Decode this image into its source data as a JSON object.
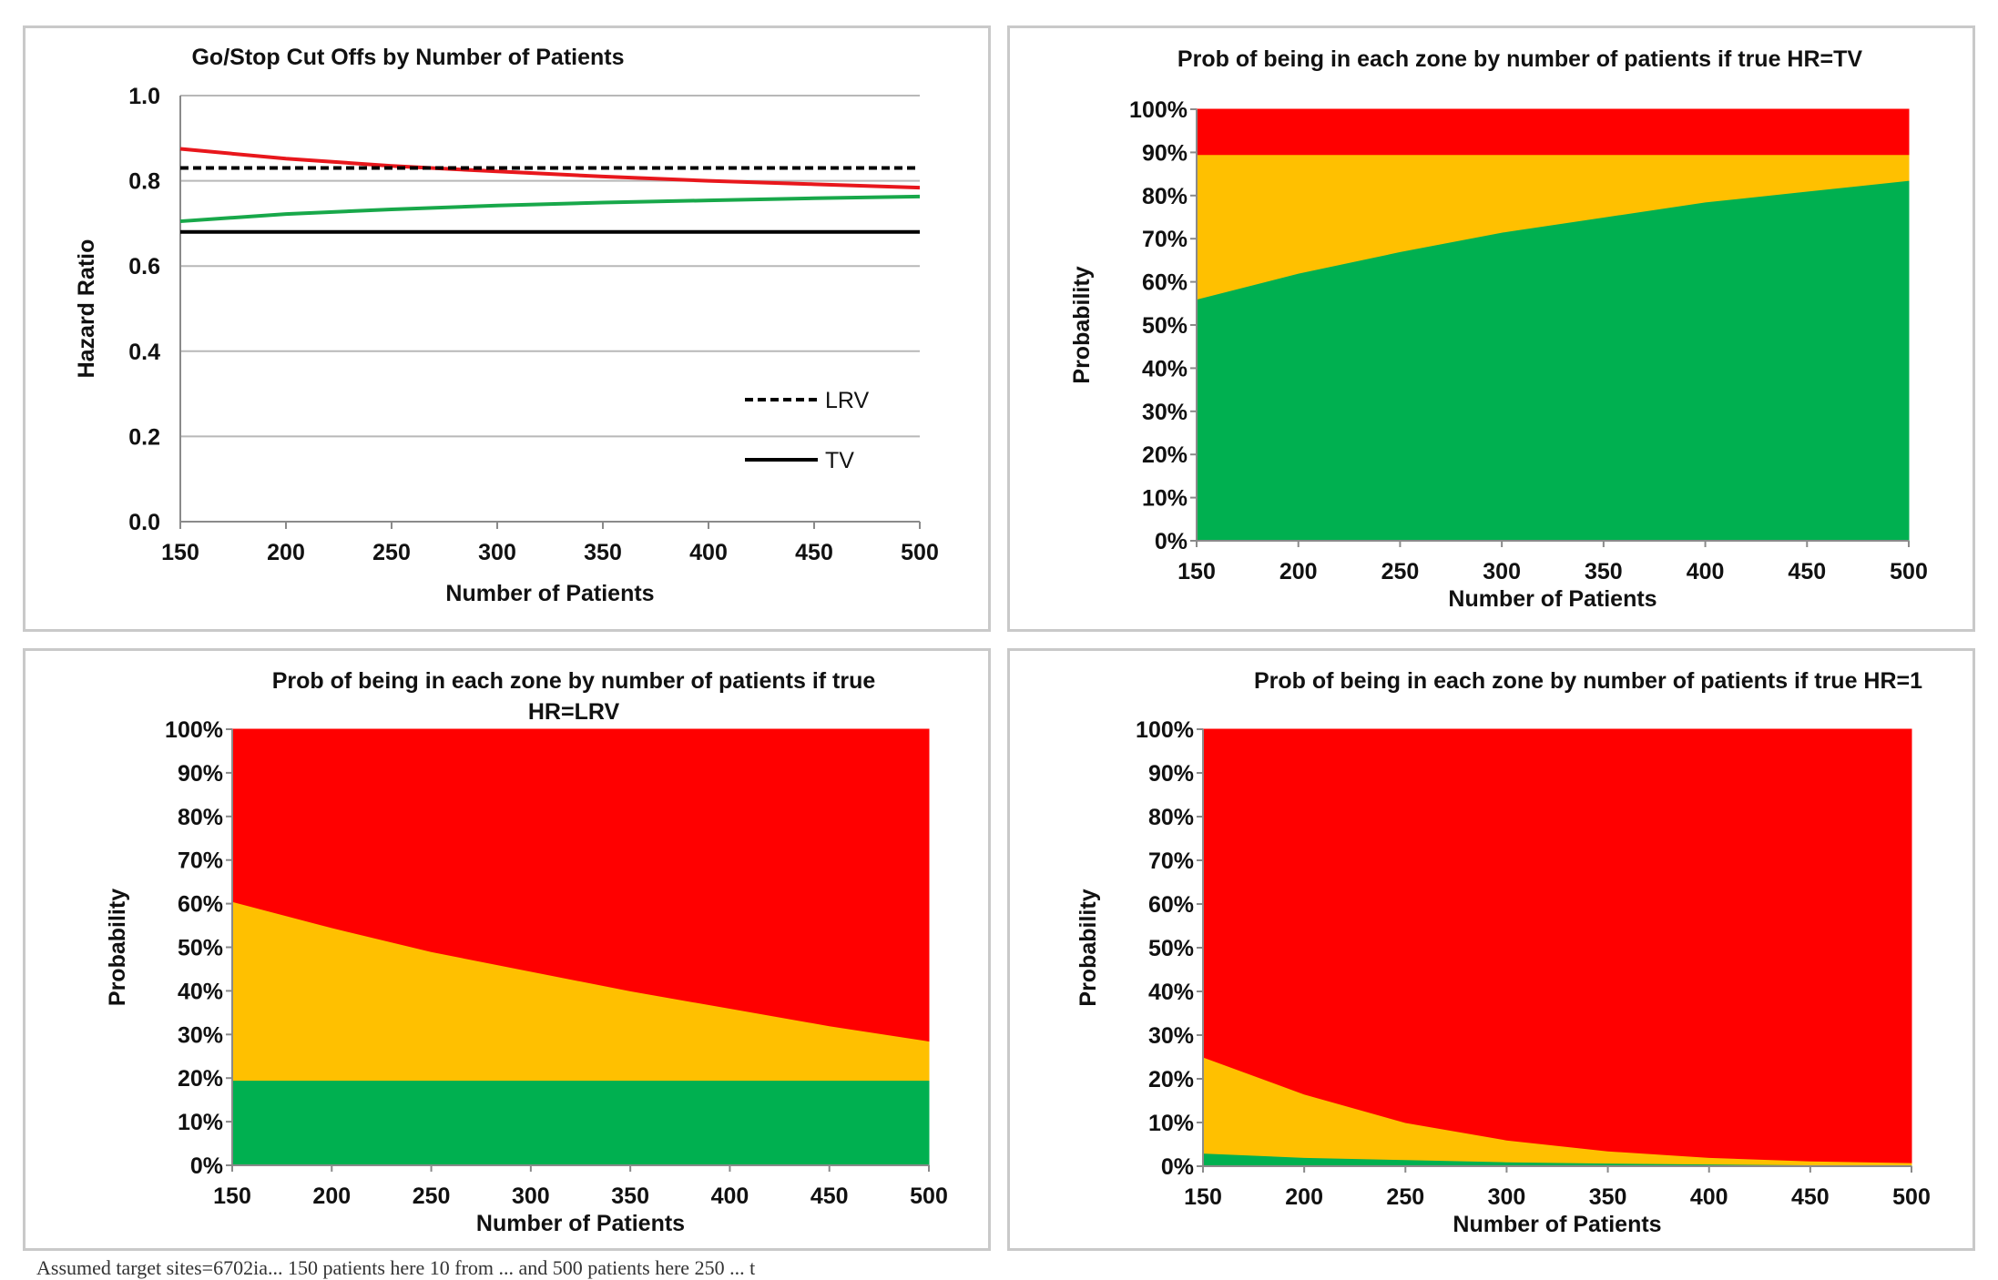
{
  "chart_data": [
    {
      "type": "line",
      "title": "Go/Stop Cut Offs by Number of Patients",
      "xlabel": "Number of Patients",
      "ylabel": "Hazard Ratio",
      "x": [
        150,
        200,
        250,
        300,
        350,
        400,
        450,
        500
      ],
      "xlim": [
        150,
        500
      ],
      "ylim": [
        0,
        1
      ],
      "yticks": [
        "0.0",
        "0.2",
        "0.4",
        "0.6",
        "0.8",
        "1.0"
      ],
      "grid": true,
      "legend_position": "bottom-right",
      "series": [
        {
          "name": "",
          "color": "#e8171c",
          "style": "solid",
          "values": [
            0.875,
            0.852,
            0.835,
            0.822,
            0.81,
            0.8,
            0.792,
            0.784
          ]
        },
        {
          "name": "",
          "color": "#18a84a",
          "style": "solid",
          "values": [
            0.705,
            0.722,
            0.733,
            0.742,
            0.749,
            0.754,
            0.759,
            0.763
          ]
        },
        {
          "name": "LRV",
          "color": "#000000",
          "style": "dashed",
          "values": [
            0.83,
            0.83,
            0.83,
            0.83,
            0.83,
            0.83,
            0.83,
            0.83
          ]
        },
        {
          "name": "TV",
          "color": "#000000",
          "style": "solid",
          "values": [
            0.68,
            0.68,
            0.68,
            0.68,
            0.68,
            0.68,
            0.68,
            0.68
          ]
        }
      ]
    },
    {
      "type": "area",
      "title": "Prob of being in each zone by number of patients if true HR=TV",
      "title_lines": [
        "Prob of being in each zone by number of patients if true HR=TV"
      ],
      "xlabel": "Number of Patients",
      "ylabel": "Probability",
      "x": [
        150,
        200,
        250,
        300,
        350,
        400,
        450,
        500
      ],
      "xlim": [
        150,
        500
      ],
      "ylim": [
        0,
        100
      ],
      "yticks": [
        "0%",
        "10%",
        "20%",
        "30%",
        "40%",
        "50%",
        "60%",
        "70%",
        "80%",
        "90%",
        "100%"
      ],
      "series": [
        {
          "name": "",
          "color": "#00b050",
          "values": [
            56,
            62,
            67,
            71.5,
            75,
            78.5,
            81,
            83.5
          ]
        },
        {
          "name": "",
          "color": "#ffc000",
          "values": [
            33.5,
            27.5,
            22.5,
            18,
            14.5,
            11,
            8.5,
            6
          ]
        },
        {
          "name": "",
          "color": "#ff0000",
          "values": [
            10.5,
            10.5,
            10.5,
            10.5,
            10.5,
            10.5,
            10.5,
            10.5
          ]
        }
      ]
    },
    {
      "type": "area",
      "title": "Prob of being in each zone by number of patients if true HR=LRV",
      "title_lines": [
        "Prob of being in each zone by number of patients if true",
        "HR=LRV"
      ],
      "xlabel": "Number of Patients",
      "ylabel": "Probability",
      "x": [
        150,
        200,
        250,
        300,
        350,
        400,
        450,
        500
      ],
      "xlim": [
        150,
        500
      ],
      "ylim": [
        0,
        100
      ],
      "yticks": [
        "0%",
        "10%",
        "20%",
        "30%",
        "40%",
        "50%",
        "60%",
        "70%",
        "80%",
        "90%",
        "100%"
      ],
      "series": [
        {
          "name": "",
          "color": "#00b050",
          "values": [
            19.5,
            19.5,
            19.5,
            19.5,
            19.5,
            19.5,
            19.5,
            19.5
          ]
        },
        {
          "name": "",
          "color": "#ffc000",
          "values": [
            41,
            35,
            29.5,
            25,
            20.5,
            16.5,
            12.5,
            9
          ]
        },
        {
          "name": "",
          "color": "#ff0000",
          "values": [
            39.5,
            45.5,
            51,
            55.5,
            60,
            64,
            68,
            71.5
          ]
        }
      ]
    },
    {
      "type": "area",
      "title": "Prob of being in each zone by number of patients if true HR=1",
      "title_lines": [
        "Prob of being in each zone by number of patients if true HR=1"
      ],
      "xlabel": "Number of Patients",
      "ylabel": "Probability",
      "x": [
        150,
        200,
        250,
        300,
        350,
        400,
        450,
        500
      ],
      "xlim": [
        150,
        500
      ],
      "ylim": [
        0,
        100
      ],
      "yticks": [
        "0%",
        "10%",
        "20%",
        "30%",
        "40%",
        "50%",
        "60%",
        "70%",
        "80%",
        "90%",
        "100%"
      ],
      "series": [
        {
          "name": "",
          "color": "#00b050",
          "values": [
            3,
            2,
            1.5,
            1,
            0.7,
            0.5,
            0.3,
            0.2
          ]
        },
        {
          "name": "",
          "color": "#ffc000",
          "values": [
            22,
            14.5,
            8.5,
            5,
            2.8,
            1.5,
            0.9,
            0.6
          ]
        },
        {
          "name": "",
          "color": "#ff0000",
          "values": [
            75,
            83.5,
            90,
            94,
            96.5,
            98,
            98.8,
            99.2
          ]
        }
      ]
    }
  ],
  "footnote": "Assumed target sites=6702ia... 150 patients here 10 from ... and 500 patients here 250 ... t"
}
